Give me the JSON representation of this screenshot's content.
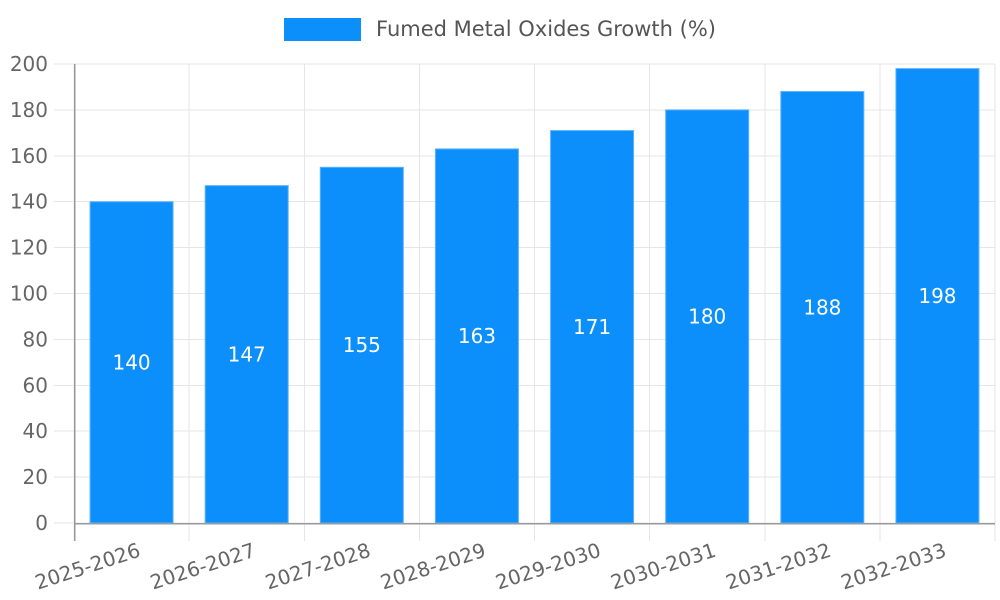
{
  "chart_data": {
    "type": "bar",
    "title": "",
    "series_name": "Fumed Metal Oxides Growth (%)",
    "categories": [
      "2025-2026",
      "2026-2027",
      "2027-2028",
      "2028-2029",
      "2029-2030",
      "2030-2031",
      "2031-2032",
      "2032-2033"
    ],
    "values": [
      140,
      147,
      155,
      163,
      171,
      180,
      188,
      198
    ],
    "xlabel": "",
    "ylabel": "",
    "ylim": [
      0,
      200
    ],
    "ytick_step": 20,
    "grid": true,
    "legend_position": "top",
    "bar_labels_inside": true,
    "colors": {
      "bar": "#0d8ffb",
      "bar_edge": "#5db2fc",
      "grid": "#e6e6e6",
      "axis": "#9a9a9a",
      "tick_text": "#666666",
      "legend_text": "#555555",
      "bar_label_text": "#ffffff",
      "background": "#ffffff"
    }
  }
}
